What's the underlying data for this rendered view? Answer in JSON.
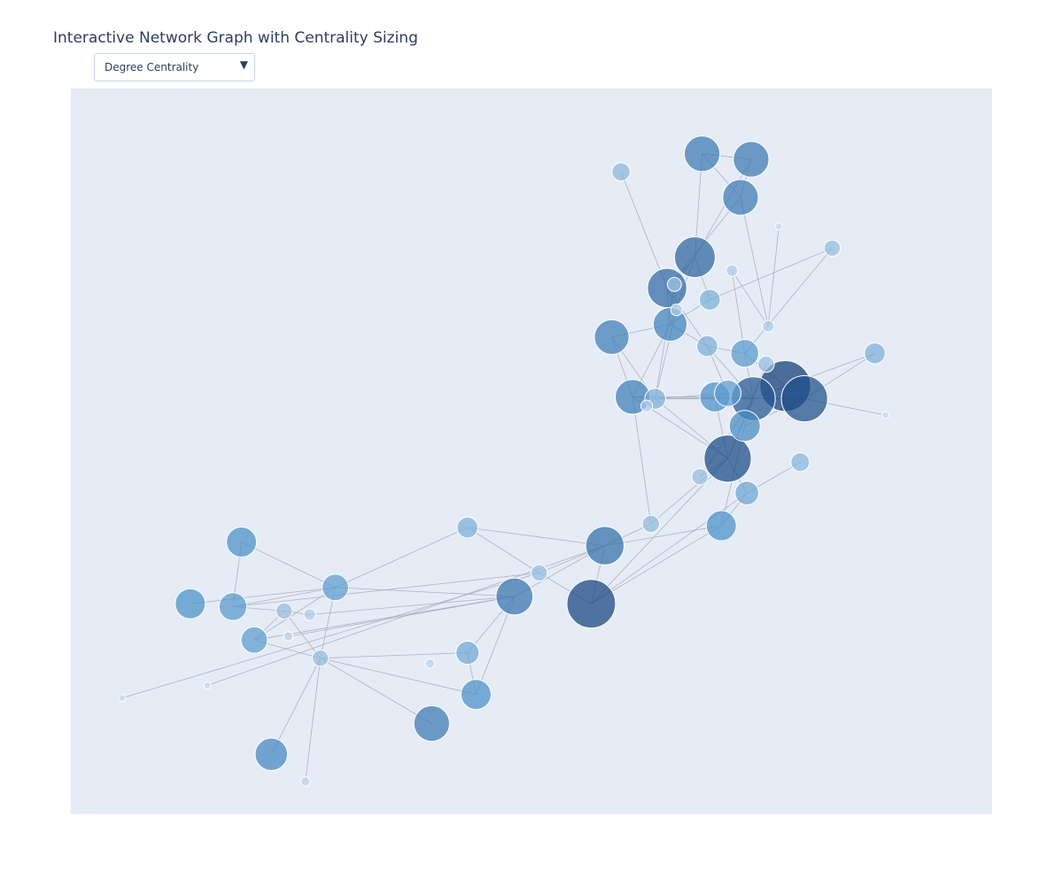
{
  "title": "Interactive Network Graph with Centrality Sizing",
  "controls": {
    "metric_selected": "Degree Centrality",
    "metric_options": [
      "Degree Centrality"
    ]
  },
  "colors": {
    "plot_background": "#e5ecf6",
    "edge": "#a5a9b6",
    "node_outline": "#ffffff",
    "scale_low": "#c6dbef",
    "scale_mid": "#4a90c8",
    "scale_high": "#08306b"
  },
  "chart_data": {
    "type": "scatter",
    "subtype": "network-graph",
    "title": "Interactive Network Graph with Centrality Sizing",
    "xlabel": "",
    "ylabel": "",
    "grid": false,
    "axes_visible": false,
    "legend": "none",
    "xlim": [
      -1.08,
      1.08
    ],
    "ylim": [
      -1.0,
      1.0
    ],
    "marker_size_encodes": "degree centrality",
    "marker_color_encodes": "degree centrality",
    "nodes": [
      {
        "id": 0,
        "x": 0.4,
        "y": 0.82,
        "c": 0.62
      },
      {
        "id": 1,
        "x": 0.515,
        "y": 0.805,
        "c": 0.62
      },
      {
        "id": 2,
        "x": 0.49,
        "y": 0.7,
        "c": 0.62
      },
      {
        "id": 3,
        "x": 0.21,
        "y": 0.77,
        "c": 0.24
      },
      {
        "id": 4,
        "x": 0.383,
        "y": 0.535,
        "c": 0.73
      },
      {
        "id": 5,
        "x": 0.318,
        "y": 0.45,
        "c": 0.7
      },
      {
        "id": 6,
        "x": 0.418,
        "y": 0.418,
        "c": 0.3
      },
      {
        "id": 7,
        "x": 0.325,
        "y": 0.35,
        "c": 0.58
      },
      {
        "id": 8,
        "x": 0.47,
        "y": 0.498,
        "c": 0.1
      },
      {
        "id": 9,
        "x": 0.188,
        "y": 0.315,
        "c": 0.6
      },
      {
        "id": 10,
        "x": 0.412,
        "y": 0.29,
        "c": 0.3
      },
      {
        "id": 11,
        "x": 0.5,
        "y": 0.27,
        "c": 0.45
      },
      {
        "id": 12,
        "x": 0.237,
        "y": 0.15,
        "c": 0.6
      },
      {
        "id": 13,
        "x": 0.29,
        "y": 0.145,
        "c": 0.3
      },
      {
        "id": 14,
        "x": 0.43,
        "y": 0.15,
        "c": 0.5
      },
      {
        "id": 15,
        "x": 0.46,
        "y": 0.16,
        "c": 0.42
      },
      {
        "id": 16,
        "x": 0.52,
        "y": 0.145,
        "c": 0.8
      },
      {
        "id": 17,
        "x": 0.64,
        "y": 0.145,
        "c": 0.85
      },
      {
        "id": 18,
        "x": 0.5,
        "y": 0.07,
        "c": 0.52
      },
      {
        "id": 19,
        "x": 0.46,
        "y": -0.02,
        "c": 0.87
      },
      {
        "id": 20,
        "x": 0.505,
        "y": -0.115,
        "c": 0.36
      },
      {
        "id": 21,
        "x": 0.445,
        "y": -0.205,
        "c": 0.5
      },
      {
        "id": 22,
        "x": 0.172,
        "y": -0.26,
        "c": 0.68
      },
      {
        "id": 23,
        "x": 0.14,
        "y": -0.42,
        "c": 0.9
      },
      {
        "id": 24,
        "x": 0.28,
        "y": -0.2,
        "c": 0.22
      },
      {
        "id": 25,
        "x": -0.15,
        "y": -0.21,
        "c": 0.3
      },
      {
        "id": 26,
        "x": 0.018,
        "y": -0.335,
        "c": 0.2
      },
      {
        "id": 27,
        "x": -0.04,
        "y": -0.4,
        "c": 0.65
      },
      {
        "id": 28,
        "x": -0.68,
        "y": -0.25,
        "c": 0.5
      },
      {
        "id": 29,
        "x": -0.46,
        "y": -0.375,
        "c": 0.42
      },
      {
        "id": 30,
        "x": -0.8,
        "y": -0.42,
        "c": 0.5
      },
      {
        "id": 31,
        "x": -0.7,
        "y": -0.428,
        "c": 0.45
      },
      {
        "id": 32,
        "x": -0.58,
        "y": -0.44,
        "c": 0.2
      },
      {
        "id": 33,
        "x": -0.52,
        "y": -0.45,
        "c": 0.1
      },
      {
        "id": 34,
        "x": -0.65,
        "y": -0.52,
        "c": 0.42
      },
      {
        "id": 35,
        "x": -0.57,
        "y": -0.51,
        "c": 0.05
      },
      {
        "id": 36,
        "x": -0.495,
        "y": -0.57,
        "c": 0.2
      },
      {
        "id": 37,
        "x": -0.15,
        "y": -0.555,
        "c": 0.35
      },
      {
        "id": 38,
        "x": -0.13,
        "y": -0.67,
        "c": 0.5
      },
      {
        "id": 39,
        "x": -0.234,
        "y": -0.75,
        "c": 0.62
      },
      {
        "id": 40,
        "x": -0.61,
        "y": -0.835,
        "c": 0.55
      },
      {
        "id": 41,
        "x": -0.53,
        "y": -0.91,
        "c": 0.05
      },
      {
        "id": 42,
        "x": -0.96,
        "y": -0.68,
        "c": 0.0
      },
      {
        "id": 43,
        "x": -0.76,
        "y": -0.645,
        "c": 0.0
      },
      {
        "id": 44,
        "x": 0.555,
        "y": 0.345,
        "c": 0.1
      },
      {
        "id": 45,
        "x": 0.58,
        "y": 0.62,
        "c": 0.0
      },
      {
        "id": 46,
        "x": 0.705,
        "y": 0.56,
        "c": 0.2
      },
      {
        "id": 47,
        "x": 0.805,
        "y": 0.27,
        "c": 0.3
      },
      {
        "id": 48,
        "x": 0.83,
        "y": 0.1,
        "c": 0.0
      },
      {
        "id": 49,
        "x": 0.595,
        "y": 0.18,
        "c": 0.95
      },
      {
        "id": 50,
        "x": 0.63,
        "y": -0.03,
        "c": 0.25
      },
      {
        "id": 51,
        "x": 0.335,
        "y": 0.46,
        "c": 0.15
      },
      {
        "id": 52,
        "x": 0.34,
        "y": 0.39,
        "c": 0.1
      },
      {
        "id": 53,
        "x": 0.27,
        "y": 0.125,
        "c": 0.1
      },
      {
        "id": 54,
        "x": 0.395,
        "y": -0.07,
        "c": 0.2
      },
      {
        "id": 55,
        "x": -0.238,
        "y": -0.585,
        "c": 0.05
      },
      {
        "id": 56,
        "x": 0.55,
        "y": 0.24,
        "c": 0.2
      }
    ],
    "edges": [
      [
        0,
        1
      ],
      [
        0,
        2
      ],
      [
        1,
        2
      ],
      [
        0,
        4
      ],
      [
        1,
        4
      ],
      [
        2,
        5
      ],
      [
        4,
        5
      ],
      [
        4,
        6
      ],
      [
        5,
        7
      ],
      [
        4,
        7
      ],
      [
        3,
        5
      ],
      [
        6,
        7
      ],
      [
        2,
        44
      ],
      [
        45,
        44
      ],
      [
        46,
        6
      ],
      [
        46,
        11
      ],
      [
        7,
        9
      ],
      [
        7,
        10
      ],
      [
        10,
        11
      ],
      [
        5,
        10
      ],
      [
        11,
        16
      ],
      [
        10,
        16
      ],
      [
        16,
        17
      ],
      [
        17,
        18
      ],
      [
        16,
        18
      ],
      [
        17,
        47
      ],
      [
        17,
        48
      ],
      [
        16,
        49
      ],
      [
        49,
        47
      ],
      [
        16,
        19
      ],
      [
        19,
        20
      ],
      [
        20,
        23
      ],
      [
        19,
        23
      ],
      [
        15,
        16
      ],
      [
        14,
        16
      ],
      [
        14,
        19
      ],
      [
        12,
        13
      ],
      [
        13,
        16
      ],
      [
        12,
        19
      ],
      [
        9,
        12
      ],
      [
        13,
        19
      ],
      [
        12,
        24
      ],
      [
        22,
        23
      ],
      [
        22,
        24
      ],
      [
        24,
        19
      ],
      [
        20,
        21
      ],
      [
        21,
        22
      ],
      [
        23,
        21
      ],
      [
        18,
        21
      ],
      [
        16,
        56
      ],
      [
        56,
        19
      ],
      [
        50,
        20
      ],
      [
        26,
        22
      ],
      [
        26,
        23
      ],
      [
        25,
        26
      ],
      [
        22,
        27
      ],
      [
        25,
        29
      ],
      [
        27,
        29
      ],
      [
        28,
        29
      ],
      [
        29,
        30
      ],
      [
        29,
        31
      ],
      [
        29,
        34
      ],
      [
        31,
        32
      ],
      [
        32,
        34
      ],
      [
        34,
        36
      ],
      [
        32,
        36
      ],
      [
        36,
        38
      ],
      [
        36,
        37
      ],
      [
        38,
        37
      ],
      [
        36,
        39
      ],
      [
        36,
        40
      ],
      [
        36,
        41
      ],
      [
        27,
        37
      ],
      [
        27,
        38
      ],
      [
        27,
        33
      ],
      [
        27,
        34
      ],
      [
        27,
        35
      ],
      [
        42,
        26
      ],
      [
        43,
        22
      ],
      [
        26,
        31
      ],
      [
        33,
        32
      ],
      [
        29,
        36
      ],
      [
        28,
        31
      ],
      [
        25,
        22
      ],
      [
        13,
        51
      ],
      [
        13,
        52
      ],
      [
        51,
        52
      ],
      [
        5,
        52
      ],
      [
        4,
        51
      ],
      [
        8,
        11
      ],
      [
        8,
        44
      ],
      [
        12,
        14
      ],
      [
        13,
        15
      ],
      [
        54,
        16
      ],
      [
        54,
        19
      ],
      [
        53,
        12
      ],
      [
        53,
        13
      ],
      [
        12,
        17
      ],
      [
        13,
        17
      ],
      [
        10,
        15
      ],
      [
        11,
        49
      ],
      [
        7,
        12
      ],
      [
        9,
        13
      ]
    ]
  }
}
